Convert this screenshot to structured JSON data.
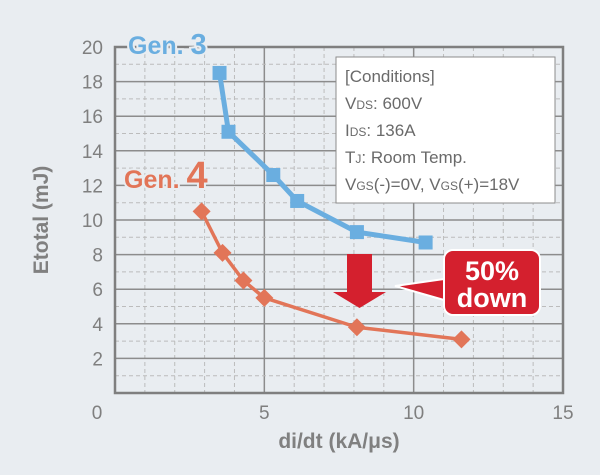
{
  "chart_data": {
    "type": "line",
    "xlabel": "di/dt (kA/μs)",
    "ylabel": "Etotal (mJ)",
    "xlim": [
      0,
      15
    ],
    "ylim": [
      0,
      20
    ],
    "xticks": [
      0,
      5,
      10,
      15
    ],
    "yticks": [
      2,
      4,
      6,
      8,
      10,
      12,
      14,
      16,
      18,
      20
    ],
    "grid": true,
    "series": [
      {
        "name": "Gen. 3",
        "color": "#6aaee0",
        "marker": "square",
        "x": [
          3.5,
          3.8,
          5.3,
          6.1,
          8.1,
          10.4
        ],
        "y": [
          18.5,
          15.1,
          12.6,
          11.1,
          9.3,
          8.7
        ]
      },
      {
        "name": "Gen. 4",
        "color": "#e27558",
        "marker": "diamond",
        "x": [
          2.9,
          3.6,
          4.3,
          5.0,
          8.1,
          11.6
        ],
        "y": [
          10.5,
          8.1,
          6.5,
          5.5,
          3.8,
          3.1
        ]
      }
    ],
    "legend_labels": {
      "gen3_prefix": "Gen. ",
      "gen3_num": "3",
      "gen4_prefix": "Gen. ",
      "gen4_num": "4"
    },
    "conditions": {
      "title": "[Conditions]",
      "vds": [
        "V",
        "DS",
        ": 600V"
      ],
      "ids": [
        "I",
        "DS",
        ": 136A"
      ],
      "tj": [
        "T",
        "J",
        ": Room Temp."
      ],
      "vgs": [
        "V",
        "GS",
        "(-)=0V, V",
        "GS",
        "(+)=18V"
      ]
    },
    "annotation": {
      "line1": "50%",
      "line2": "down",
      "color": "#d4202e"
    }
  }
}
